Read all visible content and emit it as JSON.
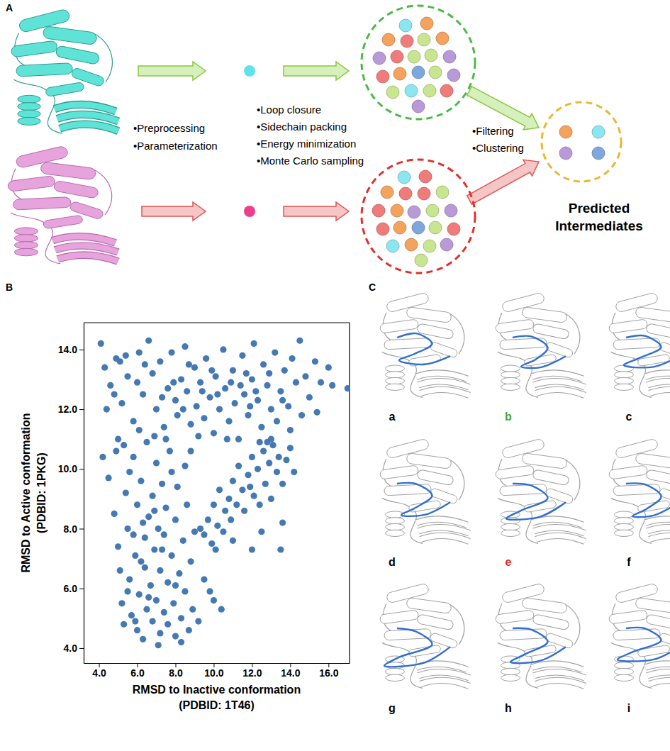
{
  "panel_labels": [
    "A",
    "B",
    "C"
  ],
  "diagram": {
    "left_steps": [
      "•Preprocessing",
      "•Parameterization"
    ],
    "middle_steps": [
      "•Loop closure",
      "•Sidechain packing",
      "•Energy minimization",
      "•Monte Carlo sampling"
    ],
    "right_steps": [
      "•Filtering",
      "•Clustering"
    ],
    "result": [
      "Predicted",
      "Intermediates"
    ]
  },
  "chart_data": {
    "type": "scatter",
    "x_label": [
      "RMSD to Inactive conformation",
      "(PDBID: 1T46)"
    ],
    "y_label": [
      "RMSD to Active conformation",
      "(PDBID: 1PKG)"
    ],
    "color": "#4479b3",
    "marker": "circle",
    "xlim": [
      3.2,
      17.1
    ],
    "ylim": [
      3.5,
      14.9
    ],
    "xticks": [
      {
        "value": 4,
        "label": "4.0"
      },
      {
        "value": 6,
        "label": "6.0"
      },
      {
        "value": 8,
        "label": "8.0"
      },
      {
        "value": 10,
        "label": "10.0"
      },
      {
        "value": 12,
        "label": "12.0"
      },
      {
        "value": 14,
        "label": "14.0"
      },
      {
        "value": 16,
        "label": "16.0"
      }
    ],
    "yticks": [
      {
        "value": 4,
        "label": "4.0"
      },
      {
        "value": 6,
        "label": "6.0"
      },
      {
        "value": 8,
        "label": "8.0"
      },
      {
        "value": 10,
        "label": "10.0"
      },
      {
        "value": 12,
        "label": "12.0"
      },
      {
        "value": 14,
        "label": "14.0"
      }
    ],
    "x": [
      4.1,
      4.3,
      4.6,
      4.9,
      5.2,
      5.5,
      5.8,
      6.1,
      6.3,
      6.6,
      6.8,
      7.0,
      7.2,
      7.4,
      7.6,
      7.8,
      8.0,
      8.1,
      8.3,
      8.5,
      8.6,
      8.8,
      9.0,
      9.1,
      9.3,
      9.5,
      9.6,
      9.8,
      10.0,
      10.1,
      10.3,
      10.5,
      10.6,
      10.8,
      11.0,
      11.1,
      11.3,
      11.5,
      11.6,
      11.8,
      12.0,
      12.1,
      12.3,
      12.5,
      12.6,
      12.8,
      13.0,
      13.2,
      13.3,
      13.5,
      13.7,
      13.9,
      14.1,
      14.3,
      14.5,
      14.6,
      14.8,
      15.0,
      15.3,
      15.6,
      16.0,
      16.2,
      17.0,
      7.9,
      8.4,
      9.4,
      10.2,
      10.9,
      11.4,
      12.2,
      12.9,
      13.6,
      8.7,
      9.9,
      11.7,
      7.3,
      6.4,
      5.1,
      4.4,
      5.0,
      4.2,
      6.9,
      14.0,
      12.4,
      15.4,
      9.2,
      10.7,
      6.0,
      5.4,
      4.8,
      11.9,
      4.5,
      4.8,
      5.0,
      5.1,
      5.2,
      5.3,
      5.4,
      5.5,
      5.6,
      5.7,
      5.8,
      5.9,
      6.0,
      6.0,
      6.1,
      6.2,
      6.2,
      6.3,
      6.4,
      6.5,
      6.5,
      6.6,
      6.7,
      6.8,
      6.8,
      6.9,
      7.0,
      7.0,
      7.1,
      7.2,
      7.2,
      7.3,
      7.4,
      7.4,
      7.5,
      7.6,
      7.6,
      7.7,
      7.8,
      7.9,
      8.0,
      8.0,
      8.1,
      8.2,
      8.3,
      8.4,
      8.5,
      8.6,
      8.7,
      8.8,
      8.9,
      9.0,
      9.2,
      9.5,
      9.8,
      10.0,
      10.4,
      5.6,
      6.1,
      5.3,
      7.5,
      6.6,
      7.1,
      8.3,
      5.8,
      6.4,
      7.8,
      4.9,
      5.5,
      6.9,
      8.0,
      7.3,
      6.3,
      8.5,
      5.9,
      9.5,
      9.7,
      9.9,
      10.0,
      10.2,
      10.3,
      10.5,
      10.6,
      10.8,
      10.9,
      11.0,
      11.2,
      11.3,
      11.5,
      11.6,
      11.8,
      12.0,
      12.1,
      12.3,
      12.4,
      12.6,
      12.7,
      12.9,
      13.0,
      13.1,
      13.3,
      13.4,
      13.6,
      13.8,
      14.0,
      12.0,
      13.5,
      13.6,
      12.5,
      11.0,
      9.3,
      10.1,
      12.8,
      11.9,
      14.2,
      13.0,
      8.8
    ],
    "y": [
      14.2,
      13.4,
      12.8,
      13.7,
      12.2,
      13.1,
      11.6,
      13.9,
      12.5,
      14.3,
      13.2,
      12.0,
      13.6,
      11.4,
      12.7,
      13.9,
      12.3,
      11.8,
      13.0,
      14.1,
      12.6,
      11.5,
      13.4,
      12.1,
      12.9,
      11.7,
      13.7,
      12.4,
      11.2,
      13.1,
      12.0,
      14.0,
      12.7,
      11.6,
      13.3,
      12.2,
      11.0,
      13.8,
      12.5,
      11.8,
      13.0,
      14.2,
      12.3,
      11.4,
      13.5,
      12.8,
      12.0,
      13.9,
      11.6,
      12.6,
      13.3,
      12.1,
      13.7,
      12.9,
      14.3,
      11.8,
      13.1,
      12.4,
      13.6,
      12.9,
      13.4,
      12.8,
      12.7,
      12.9,
      12.0,
      12.6,
      12.5,
      12.9,
      12.8,
      12.6,
      13.2,
      12.3,
      13.5,
      13.3,
      13.2,
      12.4,
      13.5,
      13.6,
      12.0,
      11.0,
      10.4,
      11.1,
      11.3,
      10.9,
      11.9,
      11.1,
      11.0,
      12.9,
      13.8,
      12.5,
      12.1,
      9.7,
      8.5,
      7.4,
      6.6,
      5.5,
      4.8,
      9.2,
      8.0,
      6.3,
      5.1,
      10.4,
      7.1,
      4.6,
      8.8,
      5.8,
      9.6,
      6.9,
      4.3,
      7.7,
      5.3,
      10.9,
      8.4,
      6.1,
      4.9,
      9.1,
      7.3,
      5.6,
      10.2,
      8.0,
      4.5,
      6.6,
      9.5,
      5.2,
      7.8,
      8.7,
      4.8,
      6.2,
      10.6,
      7.1,
      5.5,
      8.3,
      4.4,
      9.4,
      6.5,
      4.2,
      7.6,
      5.9,
      8.8,
      4.6,
      6.9,
      5.3,
      7.9,
      4.9,
      6.3,
      5.9,
      5.6,
      5.3,
      9.9,
      11.3,
      10.8,
      11.0,
      5.7,
      4.1,
      5.0,
      7.8,
      6.7,
      9.9,
      10.6,
      5.9,
      8.6,
      6.1,
      7.3,
      8.2,
      10.1,
      4.9,
      7.8,
      8.3,
      7.5,
      8.8,
      8.1,
      9.3,
      7.9,
      8.6,
      9.0,
      8.3,
      9.6,
      8.8,
      10.1,
      9.3,
      8.6,
      9.8,
      10.4,
      9.1,
      10.0,
      8.8,
      10.6,
      9.5,
      10.2,
      9.0,
      10.8,
      9.9,
      10.4,
      9.5,
      10.3,
      10.7,
      7.3,
      7.3,
      8.2,
      7.9,
      7.6,
      8.0,
      7.3,
      10.9,
      9.4,
      9.9,
      11.0,
      10.6
    ]
  },
  "structures": {
    "labels": [
      "a",
      "b",
      "c",
      "d",
      "e",
      "f",
      "g",
      "h",
      "i"
    ],
    "label_colors": [
      "#000000",
      "#3aaa35",
      "#000000",
      "#000000",
      "#e2231a",
      "#000000",
      "#000000",
      "#000000",
      "#000000"
    ]
  }
}
